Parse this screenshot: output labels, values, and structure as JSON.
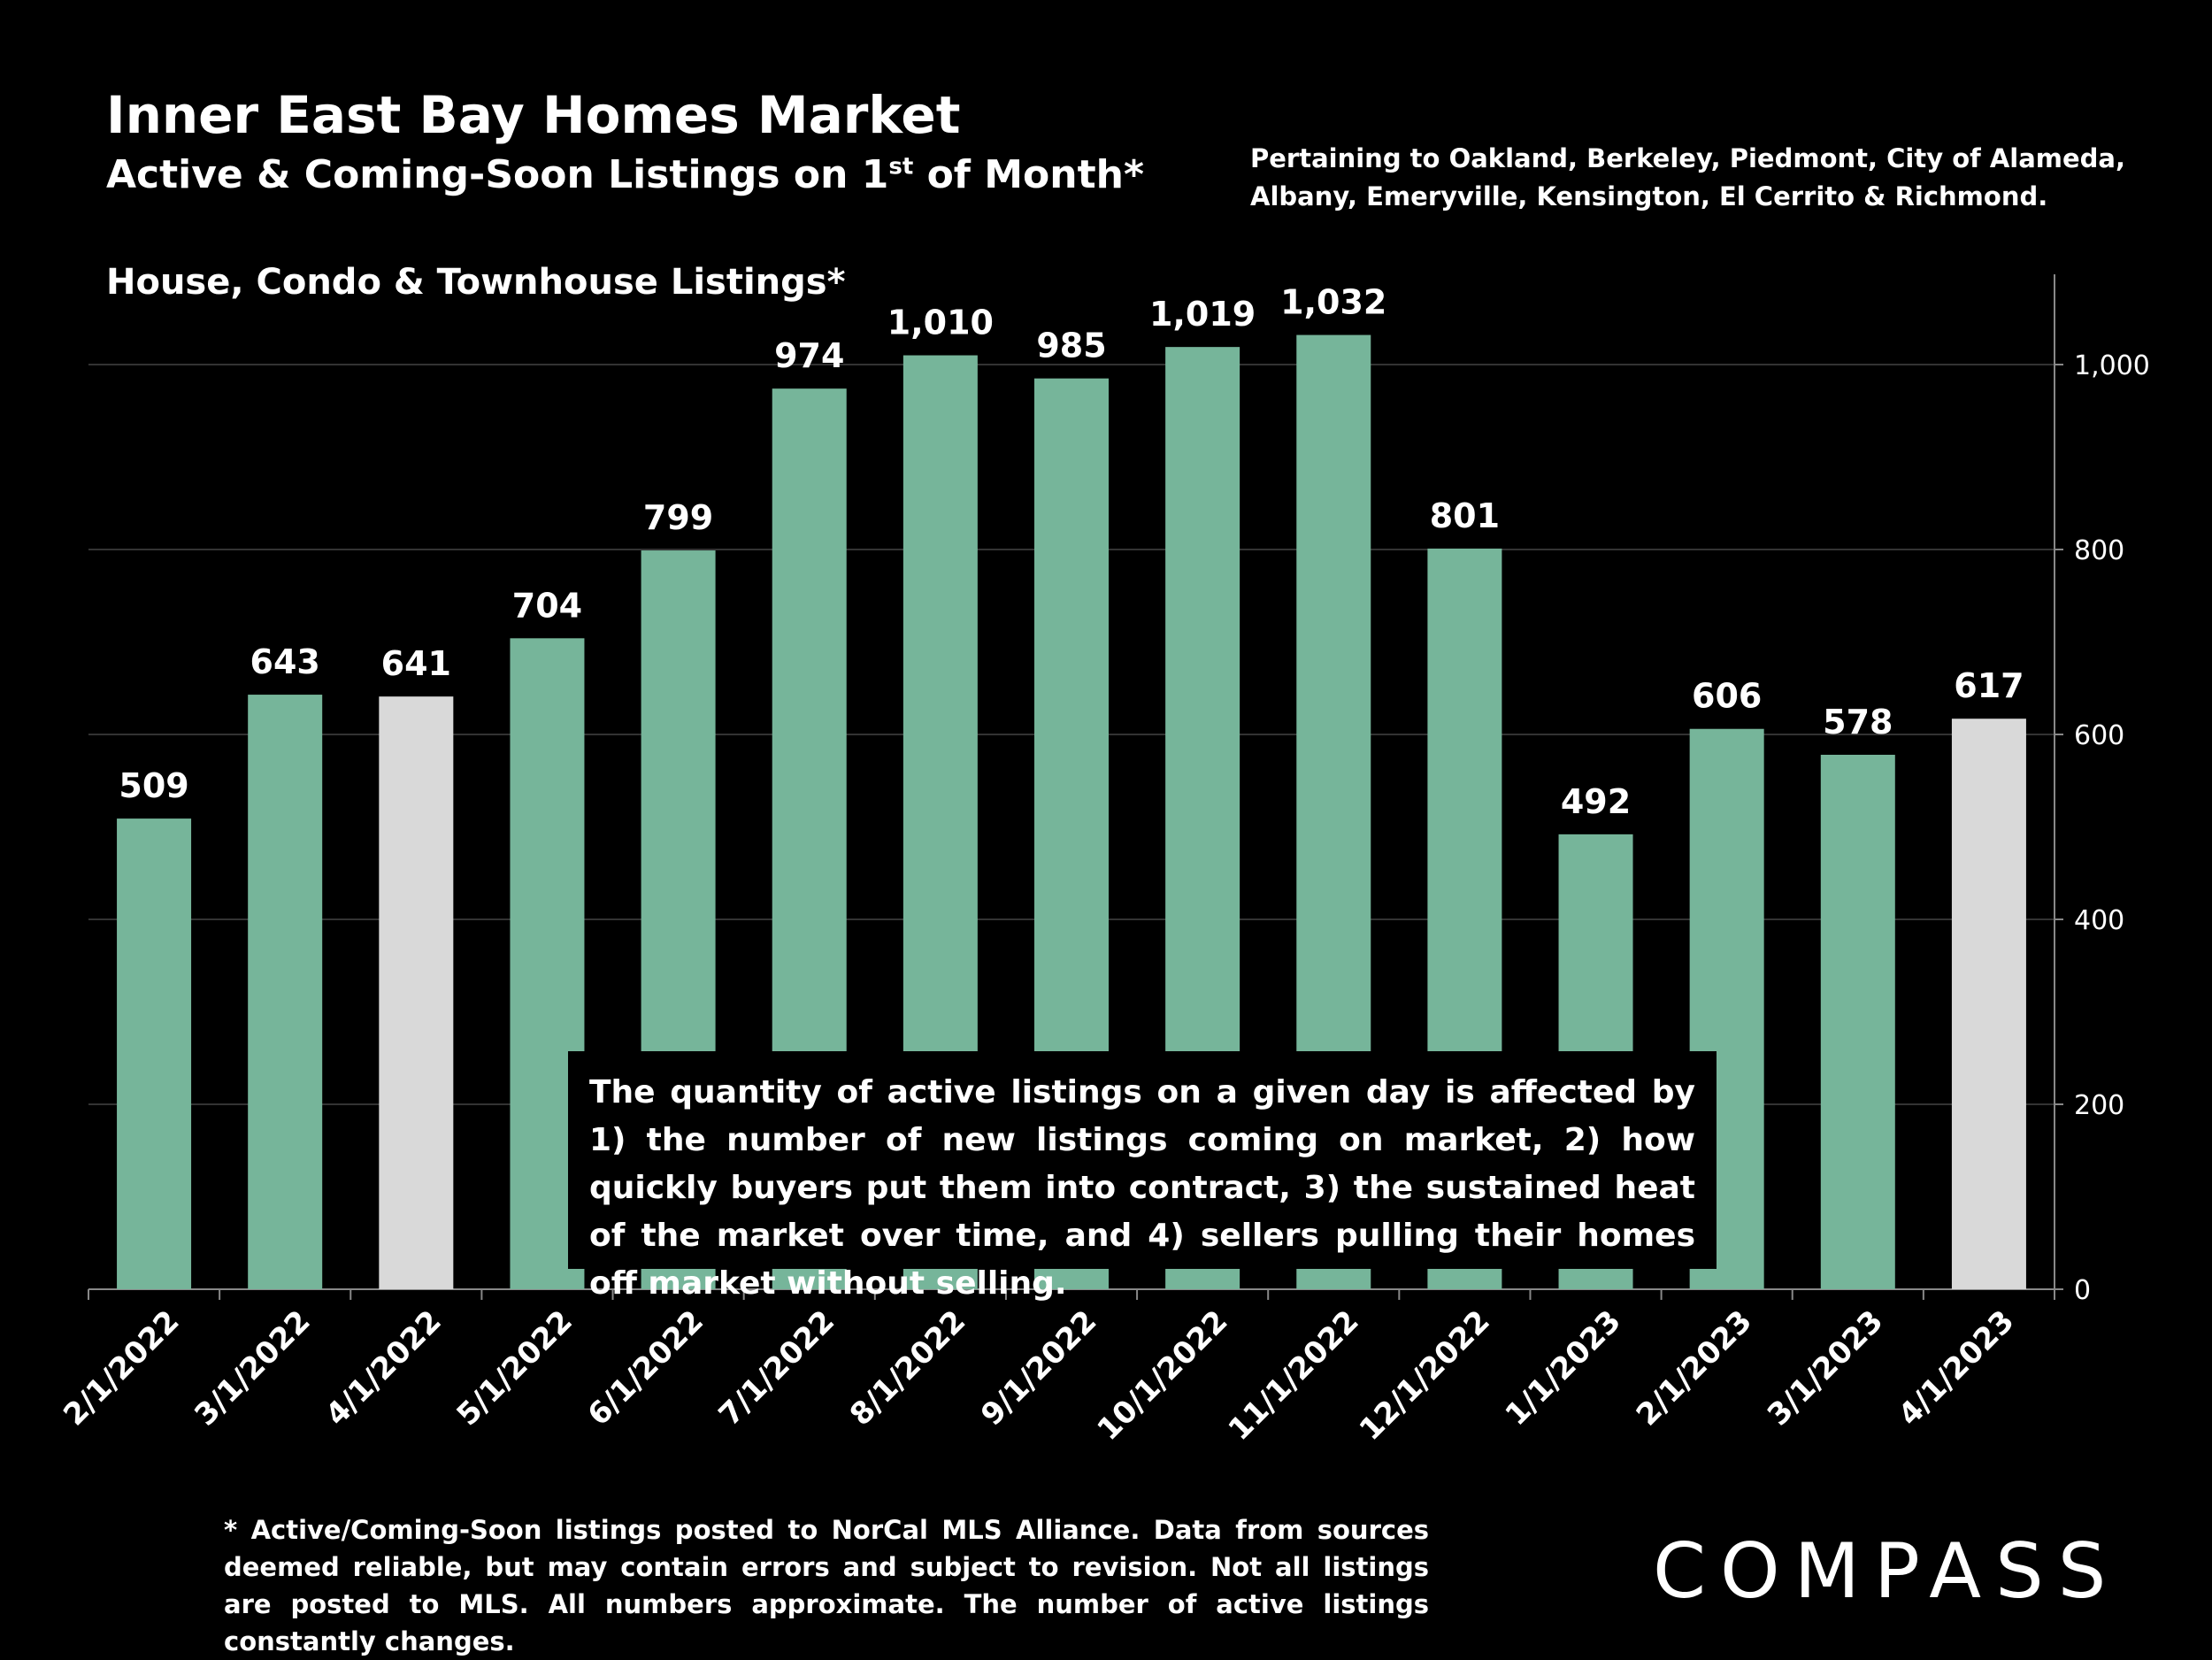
{
  "header": {
    "title": "Inner East Bay Homes Market",
    "subtitle_pre": "Active & Coming-Soon Listings on 1",
    "subtitle_sup": "st",
    "subtitle_post": " of Month*",
    "pertaining": "Pertaining to Oakland, Berkeley, Piedmont, City of Alameda, Albany, Emeryville, Kensington, El Cerrito & Richmond.",
    "series_label": "House, Condo & Townhouse Listings*"
  },
  "note": "The quantity of active listings on a given day is affected by 1) the number of new listings coming on market, 2) how quickly buyers put them into contract, 3) the sustained heat of the market over time, and 4) sellers pulling their homes off market without selling.",
  "footnote": "* Active/Coming-Soon listings posted to NorCal MLS Alliance.  Data from sources deemed reliable, but may contain errors and subject to revision.  Not all listings are posted to MLS. All numbers approximate. The number of active listings constantly changes.",
  "logo": "COMPASS",
  "colors": {
    "green": "#76b59a",
    "highlight": "#d9d9d9",
    "background": "#000000",
    "text": "#ffffff"
  },
  "chart_data": {
    "type": "bar",
    "title": "Active & Coming-Soon Listings on 1st of Month",
    "xlabel": "",
    "ylabel": "",
    "categories": [
      "2/1/2022",
      "3/1/2022",
      "4/1/2022",
      "5/1/2022",
      "6/1/2022",
      "7/1/2022",
      "8/1/2022",
      "9/1/2022",
      "10/1/2022",
      "11/1/2022",
      "12/1/2022",
      "1/1/2023",
      "2/1/2023",
      "3/1/2023",
      "4/1/2023"
    ],
    "values": [
      509,
      643,
      641,
      704,
      799,
      974,
      1010,
      985,
      1019,
      1032,
      801,
      492,
      606,
      578,
      617
    ],
    "value_labels": [
      "509",
      "643",
      "641",
      "704",
      "799",
      "974",
      "1,010",
      "985",
      "1,019",
      "1,032",
      "801",
      "492",
      "606",
      "578",
      "617"
    ],
    "highlighted": [
      "4/1/2022",
      "4/1/2023"
    ],
    "ylim": [
      0,
      1100
    ],
    "yticks": [
      0,
      200,
      400,
      600,
      800,
      1000
    ],
    "ytick_labels": [
      "0",
      "200",
      "400",
      "600",
      "800",
      "1,000"
    ],
    "y_axis_side": "right",
    "grid": true
  }
}
